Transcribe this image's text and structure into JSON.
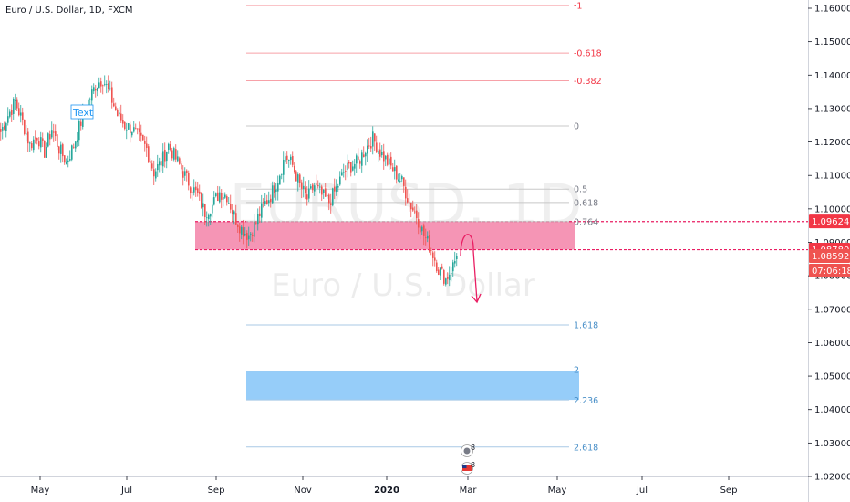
{
  "header": {
    "symbol_title": "Euro / U.S. Dollar, 1D, FXCM"
  },
  "watermark": {
    "ticker": "EURUSD, 1D",
    "name": "Euro / U.S. Dollar"
  },
  "text_tool_label": "Text",
  "price_tags": [
    {
      "label": "1.09624",
      "price": 1.09624,
      "color": "#f23645"
    },
    {
      "label": "1.08780",
      "price": 1.0878,
      "color": "#f23645"
    },
    {
      "label": "1.08592",
      "price": 1.08592,
      "color": "#ef5350"
    },
    {
      "label": "07:06:18",
      "price": 1.08592,
      "color": "#ef5350",
      "below": true
    }
  ],
  "colors": {
    "up": "#26a69a",
    "down": "#ef5350",
    "supply_zone": "#f48fb1",
    "target_zone": "#90caf9",
    "fib_red": "#f23645",
    "fib_blue": "#4a90c8"
  },
  "chart_data": {
    "type": "candlestick",
    "x_ticks": [
      "May",
      "Jul",
      "Sep",
      "Nov",
      "2020",
      "Mar",
      "May",
      "Jul",
      "Sep"
    ],
    "y_ticks": [
      "1.16000",
      "1.15000",
      "1.14000",
      "1.13000",
      "1.12000",
      "1.11000",
      "1.10000",
      "1.09000",
      "1.08000",
      "1.07000",
      "1.06000",
      "1.05000",
      "1.04000",
      "1.03000",
      "1.02000"
    ],
    "ylim": [
      1.0195,
      1.1615
    ],
    "last_price": 1.08592,
    "close_path": [
      [
        0,
        1.123
      ],
      [
        4,
        1.128
      ],
      [
        8,
        1.132
      ],
      [
        12,
        1.126
      ],
      [
        16,
        1.119
      ],
      [
        20,
        1.122
      ],
      [
        24,
        1.117
      ],
      [
        28,
        1.124
      ],
      [
        32,
        1.118
      ],
      [
        36,
        1.114
      ],
      [
        40,
        1.119
      ],
      [
        44,
        1.126
      ],
      [
        48,
        1.132
      ],
      [
        52,
        1.137
      ],
      [
        56,
        1.139
      ],
      [
        60,
        1.134
      ],
      [
        64,
        1.128
      ],
      [
        68,
        1.125
      ],
      [
        72,
        1.124
      ],
      [
        76,
        1.121
      ],
      [
        80,
        1.118
      ],
      [
        84,
        1.111
      ],
      [
        88,
        1.114
      ],
      [
        92,
        1.119
      ],
      [
        96,
        1.115
      ],
      [
        100,
        1.111
      ],
      [
        104,
        1.107
      ],
      [
        108,
        1.104
      ],
      [
        112,
        1.099
      ],
      [
        116,
        1.101
      ],
      [
        120,
        1.105
      ],
      [
        124,
        1.104
      ],
      [
        128,
        1.098
      ],
      [
        132,
        1.094
      ],
      [
        136,
        1.092
      ],
      [
        140,
        1.096
      ],
      [
        144,
        1.101
      ],
      [
        148,
        1.104
      ],
      [
        152,
        1.109
      ],
      [
        156,
        1.116
      ],
      [
        160,
        1.113
      ],
      [
        164,
        1.107
      ],
      [
        168,
        1.103
      ],
      [
        172,
        1.107
      ],
      [
        176,
        1.104
      ],
      [
        180,
        1.102
      ],
      [
        184,
        1.106
      ],
      [
        188,
        1.111
      ],
      [
        192,
        1.113
      ],
      [
        196,
        1.114
      ],
      [
        200,
        1.118
      ],
      [
        204,
        1.121
      ],
      [
        208,
        1.117
      ],
      [
        212,
        1.114
      ],
      [
        216,
        1.111
      ],
      [
        220,
        1.108
      ],
      [
        224,
        1.102
      ],
      [
        228,
        1.098
      ],
      [
        232,
        1.092
      ],
      [
        236,
        1.088
      ],
      [
        240,
        1.082
      ],
      [
        244,
        1.079
      ],
      [
        248,
        1.083
      ],
      [
        250,
        1.0859
      ]
    ],
    "fib_levels": [
      {
        "label": "-1",
        "price": 1.1608,
        "color": "red"
      },
      {
        "label": "-0.618",
        "price": 1.1466,
        "color": "red"
      },
      {
        "label": "-0.382",
        "price": 1.1383,
        "color": "red"
      },
      {
        "label": "0",
        "price": 1.1248,
        "color": "gray"
      },
      {
        "label": "0.5",
        "price": 1.1059,
        "color": "gray"
      },
      {
        "label": "0.618",
        "price": 1.1019,
        "color": "gray"
      },
      {
        "label": "0.764",
        "price": 1.0962,
        "color": "gray"
      },
      {
        "label": "1.618",
        "price": 1.0653,
        "color": "blue"
      },
      {
        "label": "2",
        "price": 1.0515,
        "color": "blue"
      },
      {
        "label": "2.236",
        "price": 1.0429,
        "color": "blue"
      },
      {
        "label": "2.618",
        "price": 1.0288,
        "color": "blue"
      }
    ],
    "supply_zone": {
      "top": 1.0962,
      "bottom": 1.0878
    },
    "target_zone": {
      "top": 1.0515,
      "bottom": 1.0429
    },
    "event_badges": [
      "8",
      "8"
    ]
  }
}
